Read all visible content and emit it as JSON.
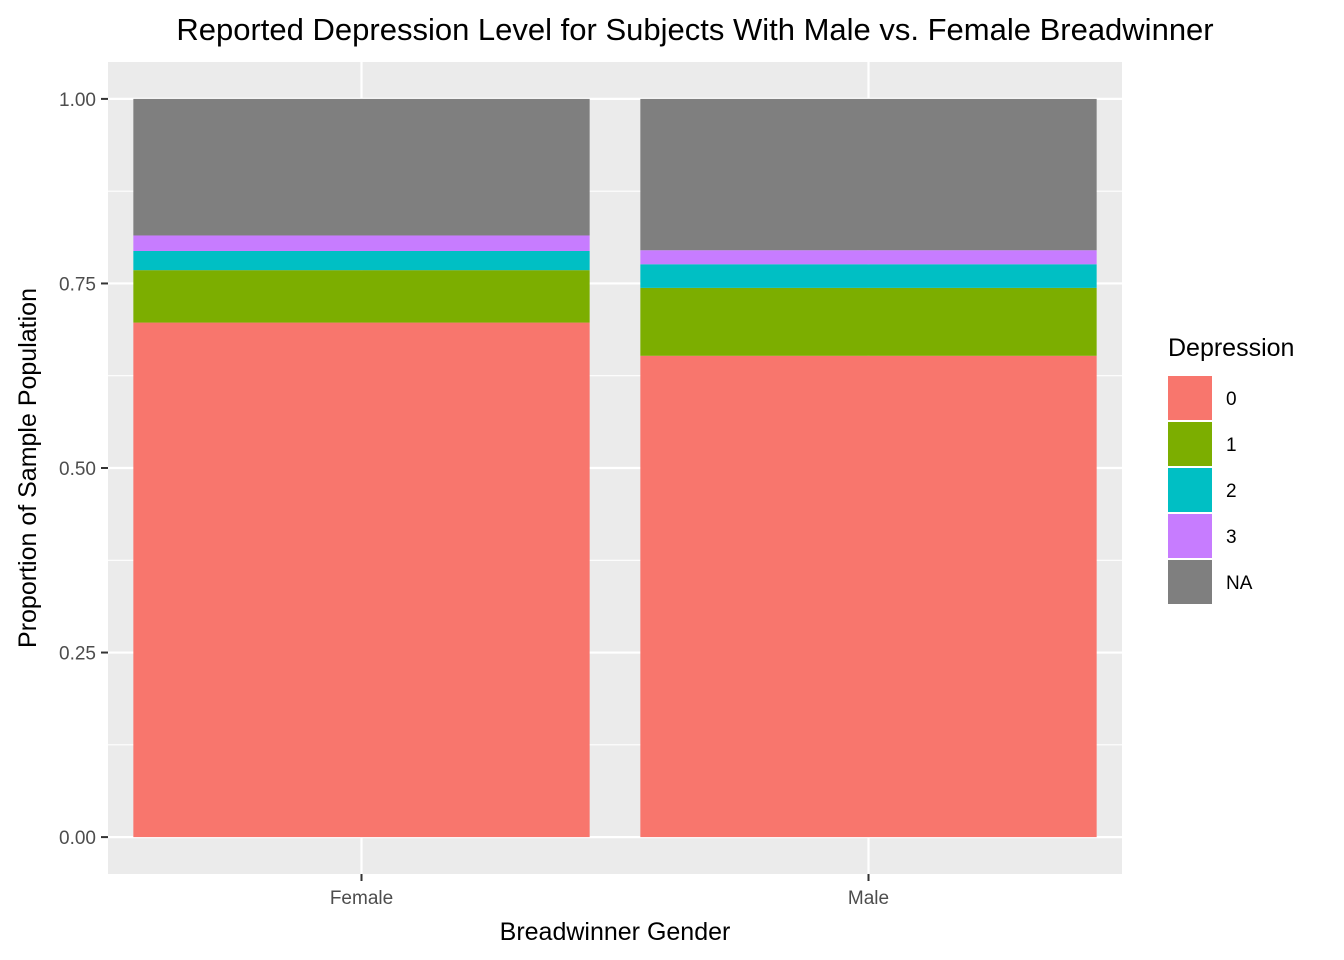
{
  "chart_data": {
    "type": "bar",
    "stacked": true,
    "title": "Reported Depression Level for Subjects With Male vs. Female Breadwinner",
    "xlabel": "Breadwinner Gender",
    "ylabel": "Proportion of Sample Population",
    "categories": [
      "Female",
      "Male"
    ],
    "ylim": [
      -0.05,
      1.05
    ],
    "yticks": [
      0,
      0.25,
      0.5,
      0.75,
      1
    ],
    "ytick_labels": [
      "0.00",
      "0.25",
      "0.50",
      "0.75",
      "1.00"
    ],
    "grid": true,
    "legend": {
      "title": "Depression",
      "position": "right"
    },
    "series": [
      {
        "name": "0",
        "color": "#F8766D",
        "values": [
          0.697,
          0.652
        ]
      },
      {
        "name": "1",
        "color": "#7CAE00",
        "values": [
          0.071,
          0.092
        ]
      },
      {
        "name": "2",
        "color": "#00BFC4",
        "values": [
          0.026,
          0.032
        ]
      },
      {
        "name": "3",
        "color": "#C77CFF",
        "values": [
          0.021,
          0.019
        ]
      },
      {
        "name": "NA",
        "color": "#7F7F7F",
        "values": [
          0.185,
          0.205
        ]
      }
    ]
  }
}
